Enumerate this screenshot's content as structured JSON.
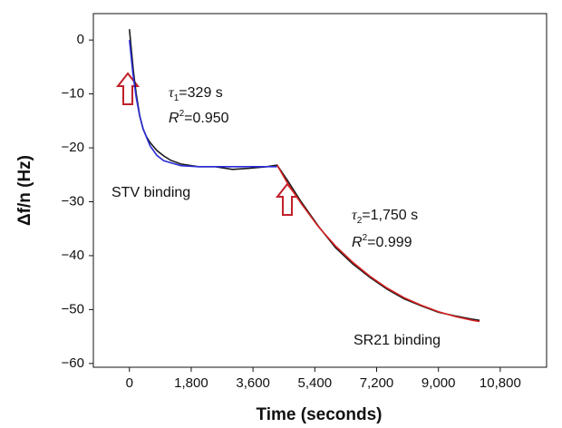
{
  "chart_data": {
    "type": "line",
    "x_label": "Time (seconds)",
    "y_label": "Δf/n (Hz)",
    "xlim": [
      -1050,
      12150
    ],
    "ylim": [
      -60.7,
      4.9
    ],
    "xticks": [
      0,
      {
        "value": 1800,
        "label": "1,800"
      },
      {
        "value": 3600,
        "label": "3,600"
      },
      {
        "value": 5400,
        "label": "5,400"
      },
      {
        "value": 7200,
        "label": "7,200"
      },
      {
        "value": 9000,
        "label": "9,000"
      },
      {
        "value": 10800,
        "label": "10,800"
      }
    ],
    "yticks": [
      0,
      {
        "value": -10,
        "label": "−10"
      },
      {
        "value": -20,
        "label": "−20"
      },
      {
        "value": -30,
        "label": "−30"
      },
      {
        "value": -40,
        "label": "−40"
      },
      {
        "value": -50,
        "label": "−50"
      },
      {
        "value": -60,
        "label": "−60"
      }
    ],
    "annotations": [
      {
        "parts": [
          "τ",
          "1",
          "=329 s"
        ]
      },
      {
        "parts": [
          "R",
          "2",
          "=0.950"
        ]
      },
      {
        "parts": [
          "STV binding"
        ]
      },
      {
        "parts": [
          "τ",
          "2",
          "=1,750 s"
        ]
      },
      {
        "parts": [
          "R",
          "2",
          "=0.999"
        ]
      },
      {
        "parts": [
          "SR21 binding"
        ]
      }
    ],
    "series": [
      {
        "color": "#1a1a1a",
        "x": [
          0,
          60,
          120,
          200,
          300,
          400,
          500,
          600,
          800,
          1000,
          1200,
          1500,
          2000,
          2500,
          3000,
          3500,
          4000,
          4300,
          4600,
          5000,
          5500,
          6000,
          6500,
          7000,
          7500,
          8000,
          8500,
          9000,
          9500,
          10000,
          10200
        ],
        "values": [
          2,
          -2,
          -6,
          -10,
          -14,
          -16.5,
          -18,
          -19,
          -20.5,
          -21.5,
          -22.3,
          -23,
          -23.5,
          -23.5,
          -24,
          -23.8,
          -23.5,
          -23.2,
          -26,
          -30,
          -34.5,
          -38.5,
          -41.5,
          -44,
          -46.2,
          -48,
          -49.3,
          -50.5,
          -51.2,
          -51.8,
          -52
        ]
      },
      {
        "color": "#2b2bd6",
        "x": [
          0,
          100,
          200,
          300,
          400,
          600,
          800,
          1000,
          1500,
          2000,
          3000,
          4300
        ],
        "values": [
          0,
          -6.2,
          -10.7,
          -14.1,
          -16.5,
          -19.6,
          -21.4,
          -22.4,
          -23.3,
          -23.5,
          -23.5,
          -23.5
        ]
      },
      {
        "color": "#d42020",
        "x": [
          4300,
          4600,
          5000,
          5500,
          6000,
          6500,
          7000,
          7500,
          8000,
          8500,
          9000,
          9500,
          10000,
          10200
        ],
        "values": [
          -23.2,
          -26.5,
          -30.3,
          -34.6,
          -38.2,
          -41.2,
          -43.8,
          -46,
          -47.8,
          -49.2,
          -50.4,
          -51.3,
          -52,
          -52.2
        ]
      }
    ]
  }
}
